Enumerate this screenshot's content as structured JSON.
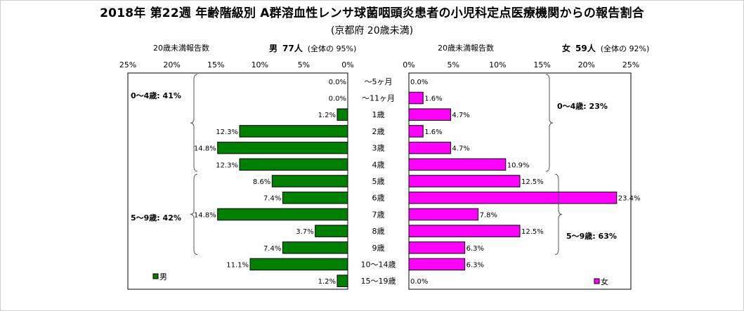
{
  "title": "2018年 第22週 年齢階級別 A群溶血性レンサ球菌咽頭炎患者の小児科定点医療機関からの報告割合",
  "subtitle": "(京都府 20歳未満)",
  "left_header": {
    "caption": "20歳未満報告数",
    "sex": "男",
    "count": "77人",
    "share": "(全体の  95%)"
  },
  "right_header": {
    "caption": "20歳未満報告数",
    "sex": "女",
    "count": "59人",
    "share": "(全体の  92%)"
  },
  "legend": {
    "male": "男",
    "female": "女"
  },
  "colors": {
    "male": "#008000",
    "female": "#ff00ff"
  },
  "chart_data": {
    "type": "bar",
    "orientation": "horizontal-butterfly",
    "title": "2018年 第22週 年齢階級別 A群溶血性レンサ球菌咽頭炎患者の小児科定点医療機関からの報告割合",
    "subtitle": "(京都府 20歳未満)",
    "categories": [
      "～5ヶ月",
      "～11ヶ月",
      "1歳",
      "2歳",
      "3歳",
      "4歳",
      "5歳",
      "6歳",
      "7歳",
      "8歳",
      "9歳",
      "10～14歳",
      "15～19歳"
    ],
    "x_ticks": [
      "25%",
      "20%",
      "15%",
      "10%",
      "5%",
      "0%"
    ],
    "x_ticks_right": [
      "0%",
      "5%",
      "10%",
      "15%",
      "20%",
      "25%"
    ],
    "xlim": [
      0,
      25
    ],
    "series": [
      {
        "name": "男",
        "values": [
          0.0,
          0.0,
          1.2,
          12.3,
          14.8,
          12.3,
          8.6,
          7.4,
          14.8,
          3.7,
          7.4,
          11.1,
          1.2
        ],
        "labels": [
          "0.0%",
          "0.0%",
          "1.2%",
          "12.3%",
          "14.8%",
          "12.3%",
          "8.6%",
          "7.4%",
          "14.8%",
          "3.7%",
          "7.4%",
          "11.1%",
          "1.2%"
        ]
      },
      {
        "name": "女",
        "values": [
          0.0,
          1.6,
          4.7,
          1.6,
          4.7,
          10.9,
          12.5,
          23.4,
          7.8,
          12.5,
          6.3,
          6.3,
          0.0
        ],
        "labels": [
          "0.0%",
          "1.6%",
          "4.7%",
          "1.6%",
          "4.7%",
          "10.9%",
          "12.5%",
          "23.4%",
          "7.8%",
          "12.5%",
          "6.3%",
          "6.3%",
          "0.0%"
        ]
      }
    ],
    "groups": {
      "male": [
        {
          "label": "0～4歳: 41%"
        },
        {
          "label": "5～9歳: 42%"
        }
      ],
      "female": [
        {
          "label": "0～4歳: 23%"
        },
        {
          "label": "5～9歳: 63%"
        }
      ]
    }
  }
}
